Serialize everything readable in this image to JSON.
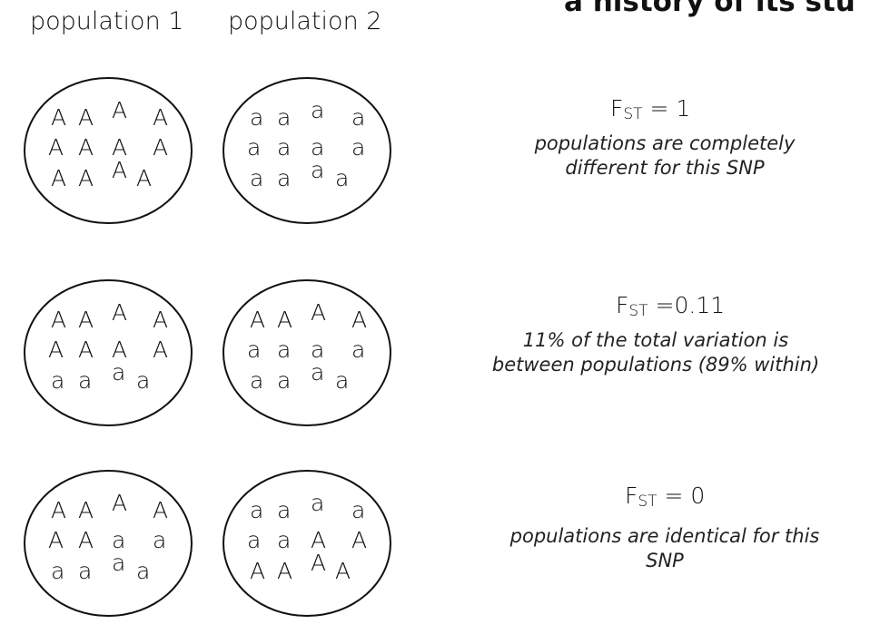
{
  "title": "a history of its stu",
  "headers": {
    "pop1": "population 1",
    "pop2": "population 2"
  },
  "rows": [
    {
      "fst_letters": "F",
      "fst_sub": "ST",
      "fst_value": "= 1",
      "description_lines": [
        "populations are completely",
        "different for this SNP"
      ],
      "pop1_alleles": [
        "A",
        "A",
        "A",
        "A",
        "A",
        "A",
        "A",
        "A",
        "A",
        "A",
        "A",
        "A"
      ],
      "pop2_alleles": [
        "a",
        "a",
        "a",
        "a",
        "a",
        "a",
        "a",
        "a",
        "a",
        "a",
        "a",
        "a"
      ]
    },
    {
      "fst_letters": "F",
      "fst_sub": "ST",
      "fst_value": "=0.11",
      "description_lines": [
        "11% of the total variation is",
        "between populations (89% within)"
      ],
      "pop1_alleles": [
        "A",
        "A",
        "A",
        "A",
        "A",
        "A",
        "A",
        "A",
        "a",
        "a",
        "a",
        "a"
      ],
      "pop2_alleles": [
        "A",
        "A",
        "A",
        "A",
        "a",
        "a",
        "a",
        "a",
        "a",
        "a",
        "a",
        "a"
      ]
    },
    {
      "fst_letters": "F",
      "fst_sub": "ST",
      "fst_value": "= 0",
      "description_lines": [
        "populations are identical for this",
        "SNP"
      ],
      "pop1_alleles": [
        "A",
        "A",
        "A",
        "A",
        "A",
        "A",
        "a",
        "a",
        "a",
        "a",
        "a",
        "a"
      ],
      "pop2_alleles": [
        "a",
        "a",
        "a",
        "a",
        "a",
        "a",
        "A",
        "A",
        "A",
        "A",
        "A",
        "A"
      ]
    }
  ]
}
